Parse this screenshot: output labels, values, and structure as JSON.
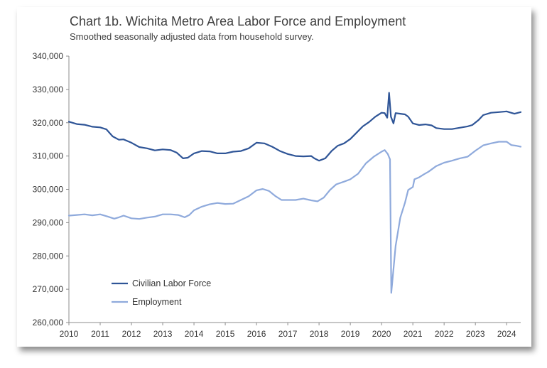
{
  "chart_data": {
    "type": "line",
    "title": "Chart 1b. Wichita Metro Area Labor Force and Employment",
    "subtitle": "Smoothed seasonally adjusted data from household survey.",
    "xlabel": "",
    "ylabel": "",
    "xlim": [
      2010,
      2024.45
    ],
    "ylim": [
      260000,
      340000
    ],
    "x_ticks": [
      "2010",
      "2011",
      "2012",
      "2013",
      "2014",
      "2015",
      "2016",
      "2017",
      "2018",
      "2019",
      "2020",
      "2021",
      "2022",
      "2023",
      "2024"
    ],
    "y_ticks": [
      "260,000",
      "270,000",
      "280,000",
      "290,000",
      "300,000",
      "310,000",
      "320,000",
      "330,000",
      "340,000"
    ],
    "grid": false,
    "legend_position": "bottom-left",
    "series": [
      {
        "name": "Civilian Labor Force",
        "color": "#2f5597",
        "points": [
          [
            2010.0,
            320300
          ],
          [
            2010.25,
            319600
          ],
          [
            2010.5,
            319400
          ],
          [
            2010.75,
            318800
          ],
          [
            2011.0,
            318600
          ],
          [
            2011.2,
            318000
          ],
          [
            2011.4,
            315900
          ],
          [
            2011.6,
            314900
          ],
          [
            2011.75,
            315000
          ],
          [
            2012.0,
            314000
          ],
          [
            2012.25,
            312700
          ],
          [
            2012.5,
            312300
          ],
          [
            2012.75,
            311700
          ],
          [
            2013.0,
            312000
          ],
          [
            2013.25,
            311800
          ],
          [
            2013.45,
            311000
          ],
          [
            2013.65,
            309300
          ],
          [
            2013.8,
            309500
          ],
          [
            2014.0,
            310800
          ],
          [
            2014.25,
            311500
          ],
          [
            2014.5,
            311400
          ],
          [
            2014.75,
            310800
          ],
          [
            2015.0,
            310800
          ],
          [
            2015.25,
            311300
          ],
          [
            2015.5,
            311500
          ],
          [
            2015.75,
            312300
          ],
          [
            2016.0,
            314000
          ],
          [
            2016.25,
            313800
          ],
          [
            2016.5,
            312800
          ],
          [
            2016.75,
            311500
          ],
          [
            2017.0,
            310600
          ],
          [
            2017.25,
            310000
          ],
          [
            2017.5,
            309900
          ],
          [
            2017.75,
            310000
          ],
          [
            2017.85,
            309300
          ],
          [
            2018.0,
            308600
          ],
          [
            2018.2,
            309300
          ],
          [
            2018.4,
            311500
          ],
          [
            2018.6,
            313100
          ],
          [
            2018.8,
            313800
          ],
          [
            2019.0,
            315100
          ],
          [
            2019.2,
            317000
          ],
          [
            2019.4,
            318900
          ],
          [
            2019.6,
            320200
          ],
          [
            2019.8,
            321800
          ],
          [
            2020.0,
            323000
          ],
          [
            2020.1,
            322900
          ],
          [
            2020.18,
            321500
          ],
          [
            2020.24,
            329000
          ],
          [
            2020.3,
            321800
          ],
          [
            2020.38,
            319800
          ],
          [
            2020.45,
            322900
          ],
          [
            2020.6,
            322700
          ],
          [
            2020.75,
            322500
          ],
          [
            2020.85,
            321800
          ],
          [
            2021.0,
            319800
          ],
          [
            2021.2,
            319300
          ],
          [
            2021.4,
            319500
          ],
          [
            2021.6,
            319200
          ],
          [
            2021.75,
            318400
          ],
          [
            2022.0,
            318100
          ],
          [
            2022.25,
            318100
          ],
          [
            2022.5,
            318500
          ],
          [
            2022.75,
            318900
          ],
          [
            2022.9,
            319300
          ],
          [
            2023.1,
            320800
          ],
          [
            2023.25,
            322300
          ],
          [
            2023.5,
            323000
          ],
          [
            2023.75,
            323200
          ],
          [
            2024.0,
            323400
          ],
          [
            2024.1,
            323100
          ],
          [
            2024.25,
            322700
          ],
          [
            2024.45,
            323200
          ]
        ]
      },
      {
        "name": "Employment",
        "color": "#8faadc",
        "points": [
          [
            2010.0,
            292100
          ],
          [
            2010.25,
            292300
          ],
          [
            2010.5,
            292500
          ],
          [
            2010.75,
            292200
          ],
          [
            2011.0,
            292500
          ],
          [
            2011.25,
            291800
          ],
          [
            2011.45,
            291200
          ],
          [
            2011.6,
            291600
          ],
          [
            2011.75,
            292100
          ],
          [
            2012.0,
            291300
          ],
          [
            2012.25,
            291100
          ],
          [
            2012.5,
            291500
          ],
          [
            2012.75,
            291800
          ],
          [
            2013.0,
            292500
          ],
          [
            2013.25,
            292500
          ],
          [
            2013.5,
            292300
          ],
          [
            2013.7,
            291600
          ],
          [
            2013.85,
            292300
          ],
          [
            2014.0,
            293700
          ],
          [
            2014.25,
            294800
          ],
          [
            2014.5,
            295500
          ],
          [
            2014.75,
            295900
          ],
          [
            2015.0,
            295600
          ],
          [
            2015.25,
            295700
          ],
          [
            2015.5,
            296800
          ],
          [
            2015.75,
            297900
          ],
          [
            2016.0,
            299700
          ],
          [
            2016.2,
            300100
          ],
          [
            2016.4,
            299500
          ],
          [
            2016.6,
            298000
          ],
          [
            2016.8,
            296800
          ],
          [
            2017.0,
            296800
          ],
          [
            2017.25,
            296800
          ],
          [
            2017.5,
            297200
          ],
          [
            2017.75,
            296700
          ],
          [
            2017.95,
            296400
          ],
          [
            2018.15,
            297500
          ],
          [
            2018.35,
            299800
          ],
          [
            2018.55,
            301500
          ],
          [
            2018.8,
            302300
          ],
          [
            2019.0,
            303000
          ],
          [
            2019.25,
            304700
          ],
          [
            2019.5,
            307800
          ],
          [
            2019.75,
            309800
          ],
          [
            2020.0,
            311300
          ],
          [
            2020.1,
            311800
          ],
          [
            2020.2,
            310600
          ],
          [
            2020.27,
            309000
          ],
          [
            2020.31,
            268900
          ],
          [
            2020.45,
            283000
          ],
          [
            2020.6,
            291500
          ],
          [
            2020.75,
            296000
          ],
          [
            2020.85,
            299800
          ],
          [
            2021.0,
            300700
          ],
          [
            2021.05,
            303000
          ],
          [
            2021.2,
            303600
          ],
          [
            2021.35,
            304500
          ],
          [
            2021.5,
            305300
          ],
          [
            2021.75,
            307000
          ],
          [
            2022.0,
            308000
          ],
          [
            2022.25,
            308600
          ],
          [
            2022.5,
            309300
          ],
          [
            2022.75,
            309800
          ],
          [
            2023.0,
            311600
          ],
          [
            2023.25,
            313200
          ],
          [
            2023.5,
            313800
          ],
          [
            2023.75,
            314300
          ],
          [
            2024.0,
            314300
          ],
          [
            2024.15,
            313300
          ],
          [
            2024.3,
            313100
          ],
          [
            2024.45,
            312800
          ]
        ]
      }
    ]
  }
}
